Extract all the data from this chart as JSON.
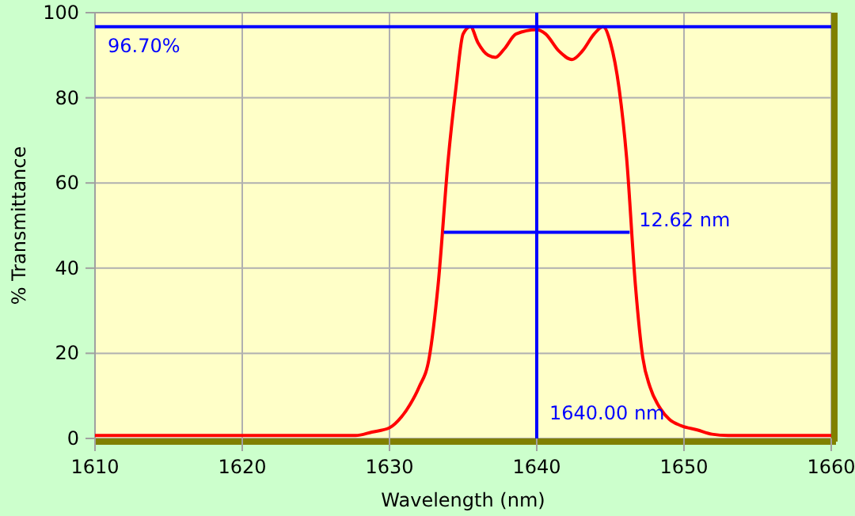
{
  "chart_data": {
    "type": "line",
    "xlabel": "Wavelength (nm)",
    "ylabel": "% Transmittance",
    "xlim": [
      1610,
      1660
    ],
    "ylim": [
      0,
      100
    ],
    "xticks": [
      1610,
      1620,
      1630,
      1640,
      1650,
      1660
    ],
    "yticks": [
      0,
      20,
      40,
      60,
      80,
      100
    ],
    "grid": true,
    "marker": "none",
    "line_style": "solid",
    "series": [
      {
        "color": "#ff0000",
        "x": [
          1610,
          1627.7,
          1628.8,
          1630,
          1630.8,
          1631.4,
          1632,
          1632.7,
          1633.3,
          1634,
          1634.5,
          1635,
          1635.5,
          1636,
          1636.7,
          1637.2,
          1637.8,
          1638.6,
          1640,
          1640.6,
          1641.5,
          1642.4,
          1643.1,
          1643.9,
          1644.5,
          1645,
          1645.6,
          1646.1,
          1646.7,
          1647.2,
          1647.7,
          1648.4,
          1649,
          1649.8,
          1650.9,
          1651.9,
          1653,
          1660
        ],
        "values": [
          0.7,
          0.7,
          1.5,
          2.5,
          5,
          8,
          12,
          19,
          36,
          66,
          82,
          95,
          96.7,
          93,
          90,
          89.5,
          91.5,
          95,
          96,
          95,
          91,
          89,
          91,
          95,
          96.7,
          93,
          82,
          66,
          36,
          19,
          12,
          7,
          4.5,
          3,
          2,
          1,
          0.7,
          0.7
        ]
      },
      {
        "color": "#0000ff",
        "x": [
          1633.69,
          1646.31
        ],
        "values": [
          48.4,
          48.4
        ]
      }
    ],
    "ref_lines": [
      {
        "axis": "y",
        "value": 96.7,
        "label": "96.70%",
        "color": "#0000ff"
      },
      {
        "axis": "x",
        "value": 1640,
        "label": "1640.00 nm",
        "color": "#0000ff"
      }
    ],
    "annotations": [
      {
        "text": "12.62 nm",
        "x": 1646.31,
        "y": 48.4
      }
    ]
  }
}
